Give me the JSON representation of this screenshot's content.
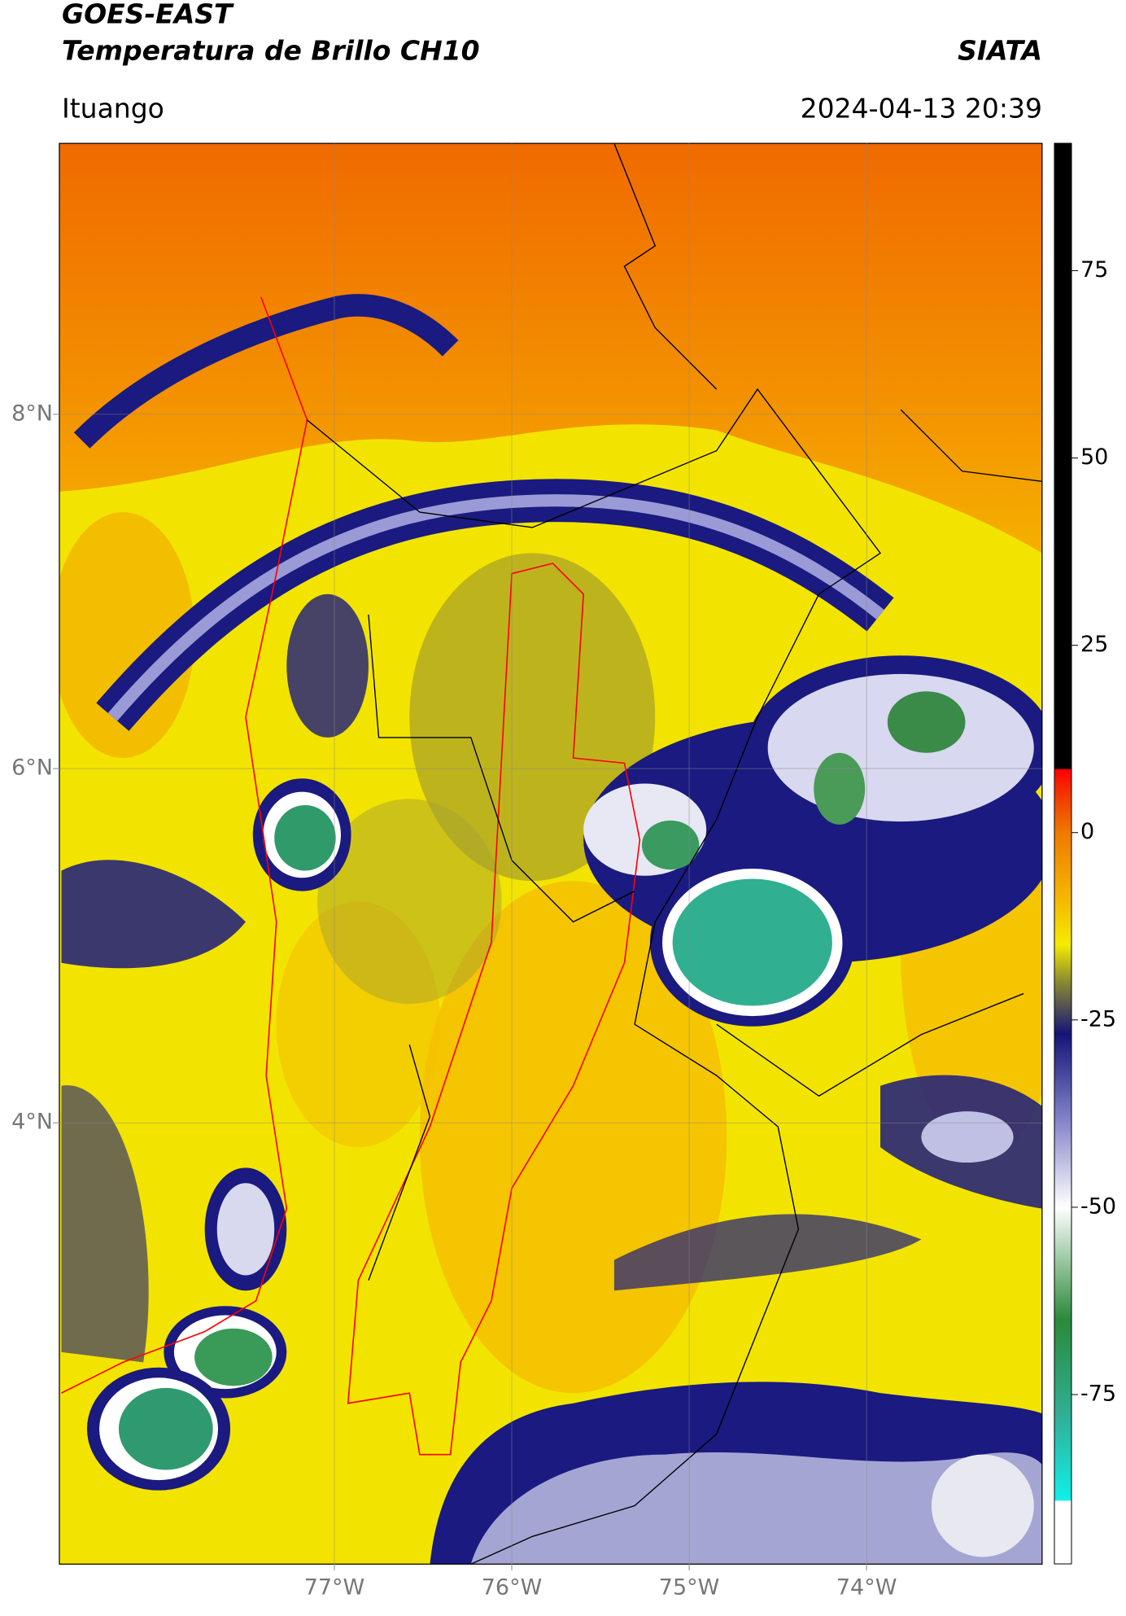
{
  "header": {
    "title": "GOES-EAST",
    "subtitle": "Temperatura de Brillo CH10",
    "agency": "SIATA",
    "location": "Ituango",
    "datetime": "2024-04-13 20:39"
  },
  "map": {
    "xlim": [
      -78.55,
      -73.01
    ],
    "ylim": [
      1.51,
      9.53
    ],
    "xticks": [
      {
        "value": -77,
        "label": "77°W"
      },
      {
        "value": -76,
        "label": "76°W"
      },
      {
        "value": -75,
        "label": "75°W"
      },
      {
        "value": -74,
        "label": "74°W"
      }
    ],
    "yticks": [
      {
        "value": 8,
        "label": "8°N"
      },
      {
        "value": 6,
        "label": "6°N"
      },
      {
        "value": 4,
        "label": "4°N"
      }
    ],
    "grid": true
  },
  "colorbar": {
    "lim": [
      -97.6,
      92
    ],
    "ticks": [
      75,
      50,
      25,
      0,
      -25,
      -50,
      -75
    ]
  }
}
